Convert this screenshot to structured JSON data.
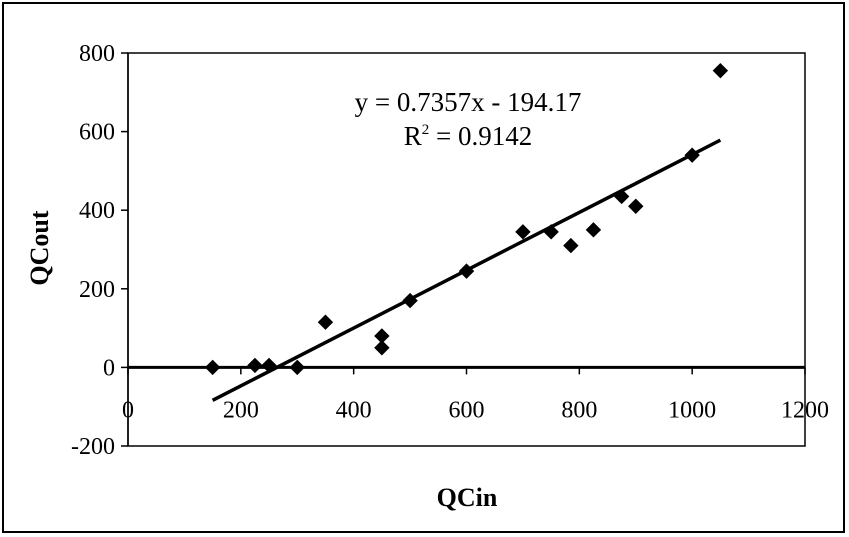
{
  "chart_data": {
    "type": "scatter",
    "title": "",
    "xlabel": "QCin",
    "ylabel": "QCout",
    "xlim": [
      0,
      1200
    ],
    "ylim": [
      -200,
      800
    ],
    "x_ticks": [
      0,
      200,
      400,
      600,
      800,
      1000,
      1200
    ],
    "y_ticks": [
      -200,
      0,
      200,
      400,
      600,
      800
    ],
    "grid": false,
    "legend": "none",
    "marker": "diamond",
    "marker_color": "#000000",
    "series": [
      {
        "x": [
          150,
          225,
          250,
          300,
          350,
          450,
          450,
          500,
          600,
          700,
          750,
          785,
          825,
          875,
          900,
          1000,
          1050
        ],
        "y": [
          0,
          5,
          5,
          0,
          115,
          80,
          50,
          170,
          245,
          345,
          345,
          310,
          350,
          435,
          410,
          540,
          755
        ]
      }
    ],
    "trendline": {
      "type": "linear",
      "slope": 0.7357,
      "intercept": -194.17,
      "x_range": [
        150,
        1050
      ],
      "color": "#000000"
    },
    "annotations": {
      "equation": "y = 0.7357x - 194.17",
      "r2_prefix": "R",
      "r2_exp": "2",
      "r2_suffix": " = 0.9142"
    }
  }
}
